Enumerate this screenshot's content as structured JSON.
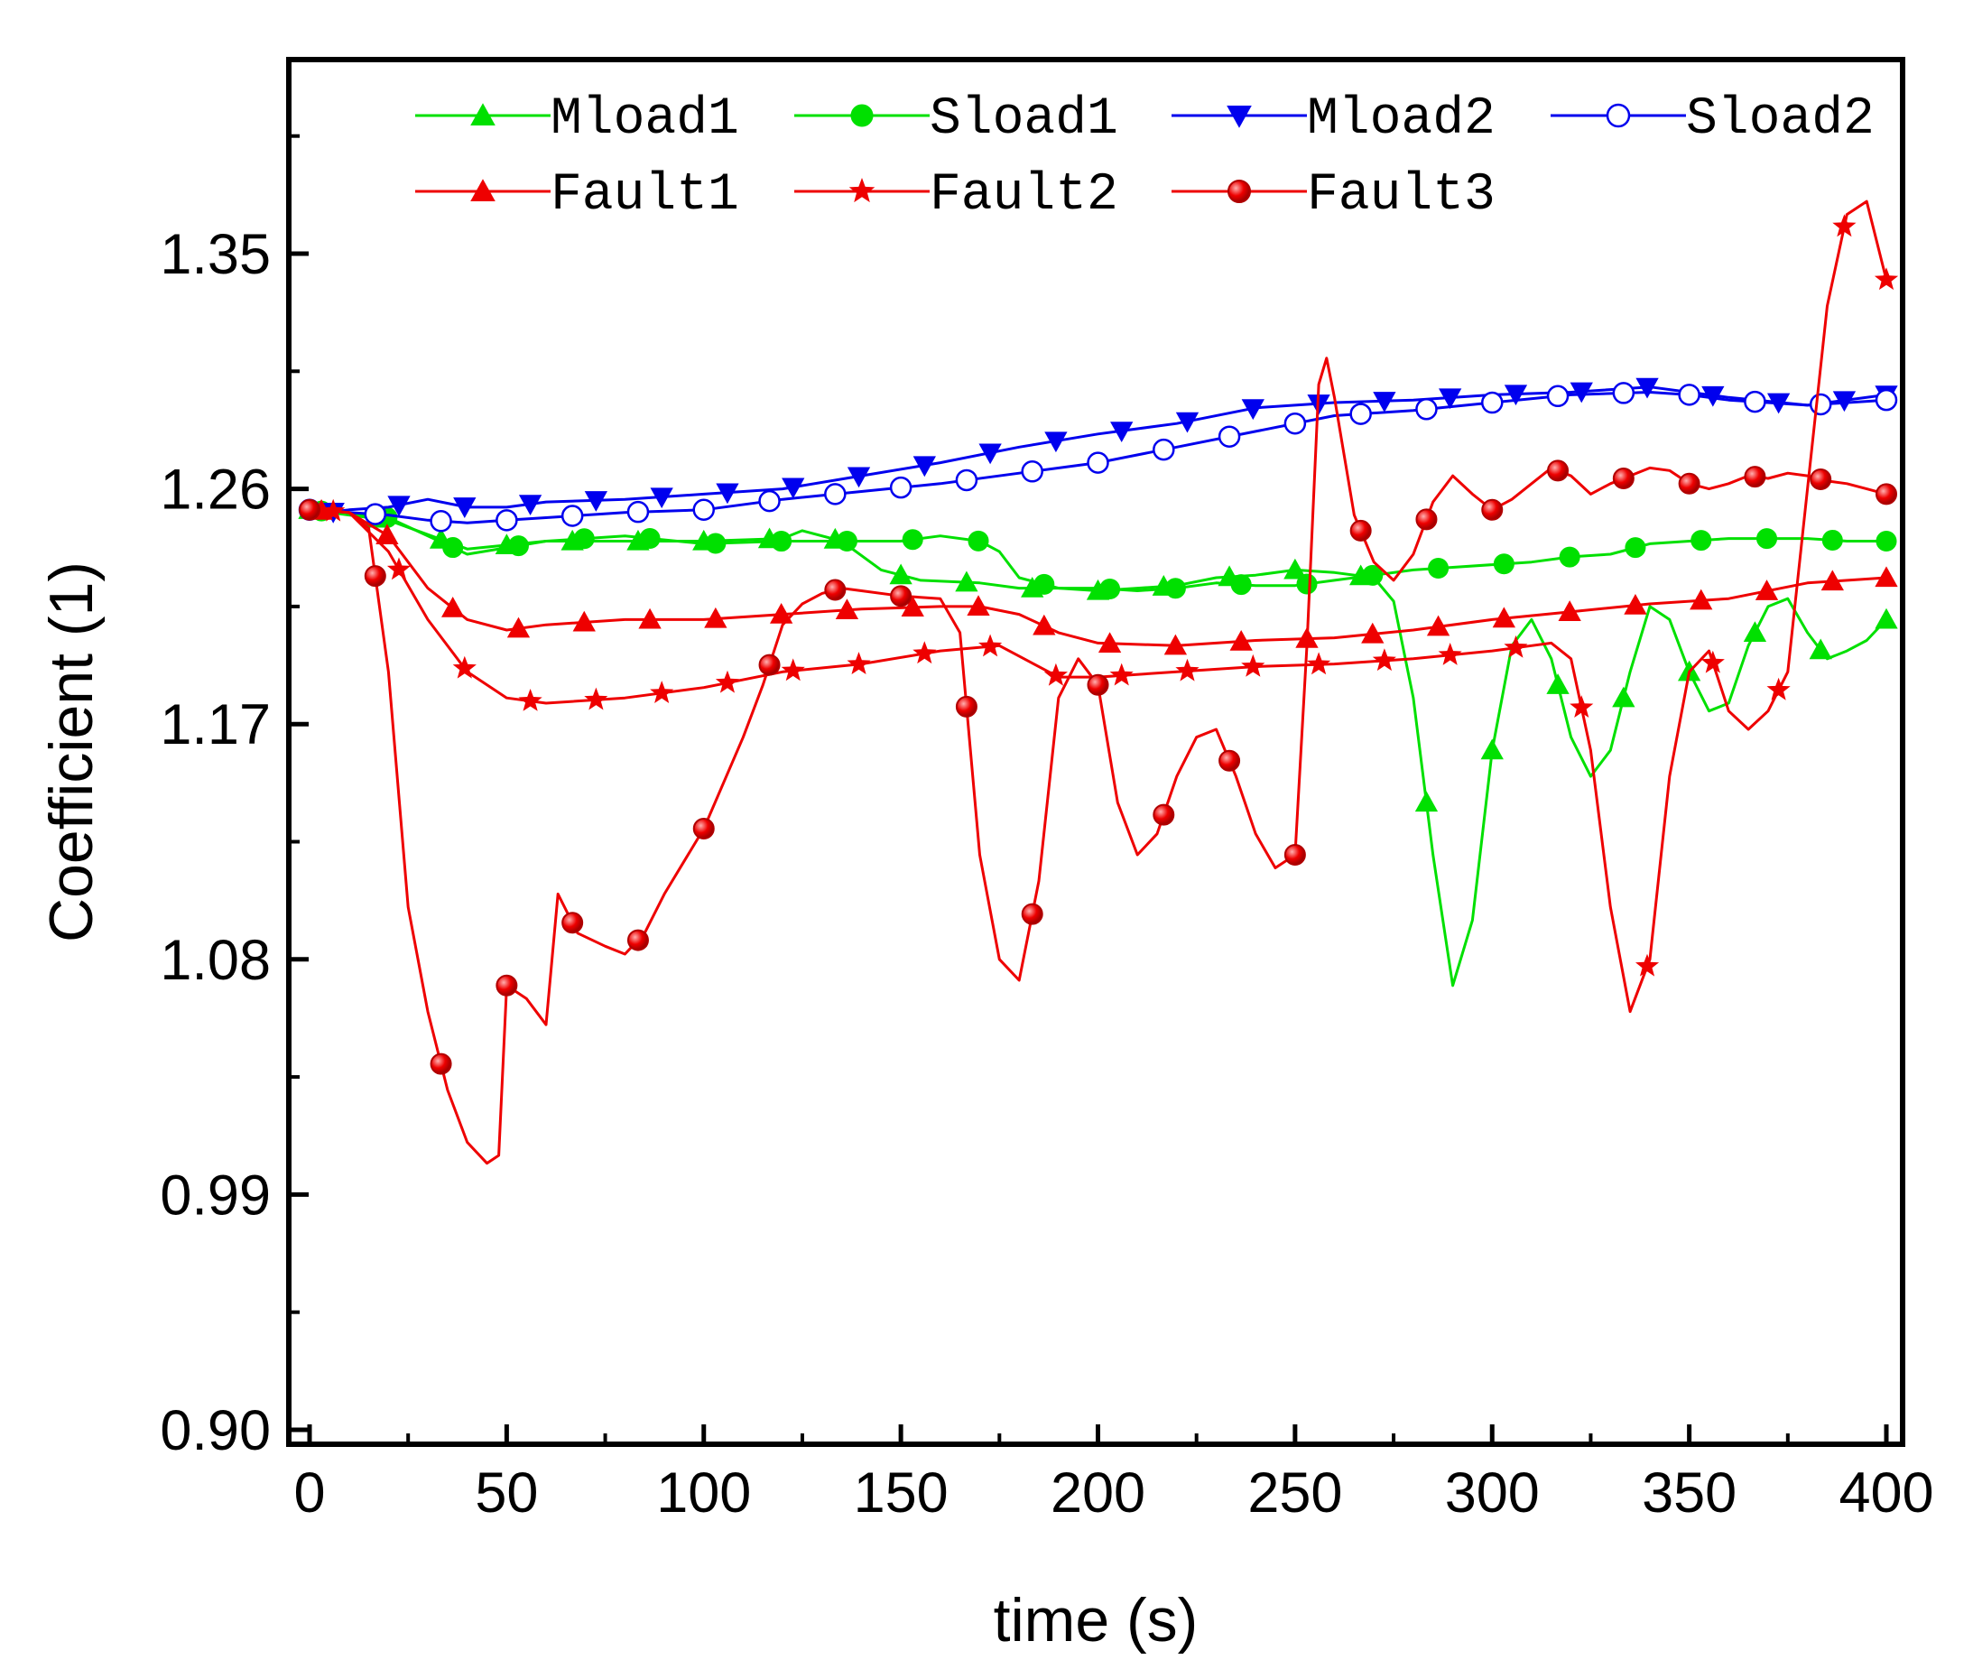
{
  "chart_data": {
    "type": "line",
    "title": "",
    "xlabel": "time (s)",
    "ylabel": "Coefficient (1)",
    "xlim": [
      -5,
      405
    ],
    "ylim": [
      0.9,
      1.44
    ],
    "xticks": [
      0,
      50,
      100,
      150,
      200,
      250,
      300,
      350,
      400
    ],
    "xtick_labels": [
      "0",
      "50",
      "100",
      "150",
      "200",
      "250",
      "300",
      "350",
      "400"
    ],
    "yticks": [
      0.9,
      0.99,
      1.08,
      1.17,
      1.26,
      1.35
    ],
    "ytick_labels": [
      "0.90",
      "0.99",
      "1.08",
      "1.17",
      "1.26",
      "1.35"
    ],
    "grid": false,
    "legend_position": "top",
    "series": [
      {
        "name": "Mload1",
        "color": "#00e000",
        "marker": "triangle-up",
        "filled": true,
        "x": [
          0,
          20,
          40,
          60,
          80,
          100,
          120,
          125,
          135,
          145,
          155,
          170,
          180,
          190,
          200,
          210,
          220,
          230,
          240,
          250,
          260,
          270,
          275,
          280,
          285,
          290,
          295,
          300,
          305,
          310,
          315,
          320,
          325,
          330,
          335,
          340,
          345,
          350,
          355,
          360,
          365,
          370,
          375,
          380,
          385,
          390,
          395,
          400
        ],
        "y": [
          1.252,
          1.248,
          1.237,
          1.24,
          1.24,
          1.24,
          1.241,
          1.244,
          1.24,
          1.229,
          1.225,
          1.224,
          1.222,
          1.222,
          1.221,
          1.222,
          1.223,
          1.226,
          1.227,
          1.229,
          1.228,
          1.226,
          1.217,
          1.18,
          1.12,
          1.07,
          1.095,
          1.16,
          1.2,
          1.21,
          1.195,
          1.165,
          1.15,
          1.16,
          1.19,
          1.215,
          1.21,
          1.19,
          1.175,
          1.178,
          1.2,
          1.215,
          1.218,
          1.205,
          1.195,
          1.198,
          1.202,
          1.21
        ]
      },
      {
        "name": "Sload1",
        "color": "#00e000",
        "marker": "circle",
        "filled": true,
        "x": [
          0,
          20,
          40,
          60,
          80,
          100,
          120,
          140,
          150,
          160,
          170,
          175,
          180,
          190,
          200,
          210,
          220,
          230,
          240,
          250,
          260,
          270,
          280,
          290,
          300,
          310,
          320,
          330,
          340,
          350,
          360,
          370,
          380,
          390,
          400
        ],
        "y": [
          1.252,
          1.249,
          1.235,
          1.24,
          1.242,
          1.239,
          1.24,
          1.24,
          1.24,
          1.242,
          1.24,
          1.236,
          1.226,
          1.222,
          1.222,
          1.221,
          1.222,
          1.224,
          1.223,
          1.223,
          1.225,
          1.227,
          1.229,
          1.23,
          1.231,
          1.232,
          1.234,
          1.235,
          1.239,
          1.24,
          1.241,
          1.241,
          1.241,
          1.24,
          1.24
        ]
      },
      {
        "name": "Mload2",
        "color": "#0000ee",
        "marker": "triangle-down",
        "filled": true,
        "x": [
          0,
          10,
          20,
          30,
          40,
          50,
          60,
          80,
          100,
          120,
          140,
          160,
          180,
          200,
          220,
          240,
          260,
          280,
          300,
          320,
          340,
          350,
          360,
          380,
          400
        ],
        "y": [
          1.25,
          1.252,
          1.253,
          1.256,
          1.253,
          1.253,
          1.255,
          1.256,
          1.258,
          1.26,
          1.265,
          1.27,
          1.276,
          1.281,
          1.285,
          1.291,
          1.293,
          1.294,
          1.296,
          1.297,
          1.299,
          1.297,
          1.295,
          1.292,
          1.296
        ]
      },
      {
        "name": "Sload2",
        "color": "#0000ee",
        "marker": "circle",
        "filled": false,
        "x": [
          0,
          10,
          20,
          30,
          40,
          50,
          60,
          80,
          100,
          120,
          140,
          160,
          180,
          200,
          220,
          240,
          260,
          280,
          300,
          320,
          340,
          350,
          360,
          380,
          400
        ],
        "y": [
          1.252,
          1.251,
          1.25,
          1.248,
          1.247,
          1.248,
          1.249,
          1.251,
          1.252,
          1.256,
          1.259,
          1.262,
          1.266,
          1.27,
          1.276,
          1.282,
          1.288,
          1.29,
          1.293,
          1.296,
          1.297,
          1.296,
          1.294,
          1.292,
          1.294
        ]
      },
      {
        "name": "Fault1",
        "color": "#ee0000",
        "marker": "triangle-up",
        "filled": true,
        "x": [
          0,
          10,
          20,
          30,
          40,
          50,
          60,
          80,
          100,
          120,
          140,
          160,
          170,
          180,
          190,
          200,
          220,
          240,
          260,
          280,
          300,
          320,
          340,
          360,
          380,
          400
        ],
        "y": [
          1.252,
          1.251,
          1.242,
          1.222,
          1.21,
          1.206,
          1.208,
          1.21,
          1.21,
          1.212,
          1.214,
          1.215,
          1.215,
          1.212,
          1.205,
          1.201,
          1.2,
          1.202,
          1.203,
          1.206,
          1.21,
          1.213,
          1.216,
          1.218,
          1.224,
          1.226
        ]
      },
      {
        "name": "Fault2",
        "color": "#ee0000",
        "marker": "star",
        "filled": true,
        "x": [
          0,
          10,
          20,
          30,
          40,
          50,
          60,
          80,
          100,
          120,
          140,
          160,
          175,
          190,
          200,
          220,
          240,
          260,
          280,
          300,
          310,
          315,
          320,
          325,
          330,
          335,
          340,
          345,
          350,
          355,
          360,
          365,
          370,
          375,
          380,
          385,
          390,
          395,
          400
        ],
        "y": [
          1.252,
          1.251,
          1.236,
          1.21,
          1.19,
          1.18,
          1.178,
          1.18,
          1.184,
          1.19,
          1.193,
          1.198,
          1.2,
          1.188,
          1.188,
          1.19,
          1.192,
          1.193,
          1.195,
          1.198,
          1.2,
          1.201,
          1.195,
          1.16,
          1.1,
          1.06,
          1.08,
          1.15,
          1.19,
          1.198,
          1.175,
          1.168,
          1.175,
          1.19,
          1.26,
          1.33,
          1.365,
          1.37,
          1.34
        ]
      },
      {
        "name": "Fault3",
        "color": "#ee0000",
        "marker": "circle",
        "filled": true,
        "x": [
          0,
          10,
          15,
          20,
          25,
          30,
          35,
          40,
          45,
          48,
          50,
          55,
          60,
          63,
          68,
          75,
          80,
          85,
          90,
          100,
          110,
          115,
          120,
          125,
          130,
          135,
          140,
          150,
          160,
          165,
          170,
          175,
          180,
          185,
          190,
          195,
          200,
          205,
          210,
          215,
          220,
          225,
          230,
          235,
          240,
          245,
          250,
          253,
          256,
          258,
          260,
          265,
          270,
          275,
          280,
          285,
          290,
          295,
          300,
          305,
          310,
          315,
          320,
          325,
          330,
          335,
          340,
          345,
          350,
          355,
          360,
          365,
          370,
          375,
          380,
          385,
          390,
          395,
          400
        ],
        "y": [
          1.252,
          1.251,
          1.245,
          1.19,
          1.1,
          1.06,
          1.03,
          1.01,
          1.002,
          1.005,
          1.07,
          1.065,
          1.055,
          1.105,
          1.09,
          1.085,
          1.082,
          1.09,
          1.105,
          1.13,
          1.165,
          1.185,
          1.208,
          1.216,
          1.22,
          1.222,
          1.221,
          1.219,
          1.218,
          1.205,
          1.12,
          1.08,
          1.072,
          1.11,
          1.18,
          1.195,
          1.185,
          1.14,
          1.12,
          1.128,
          1.15,
          1.165,
          1.168,
          1.15,
          1.128,
          1.115,
          1.12,
          1.2,
          1.3,
          1.31,
          1.295,
          1.25,
          1.232,
          1.225,
          1.235,
          1.255,
          1.265,
          1.258,
          1.252,
          1.256,
          1.262,
          1.268,
          1.265,
          1.258,
          1.262,
          1.265,
          1.268,
          1.267,
          1.262,
          1.26,
          1.262,
          1.265,
          1.264,
          1.266,
          1.265,
          1.263,
          1.262,
          1.26,
          1.258
        ]
      }
    ]
  }
}
